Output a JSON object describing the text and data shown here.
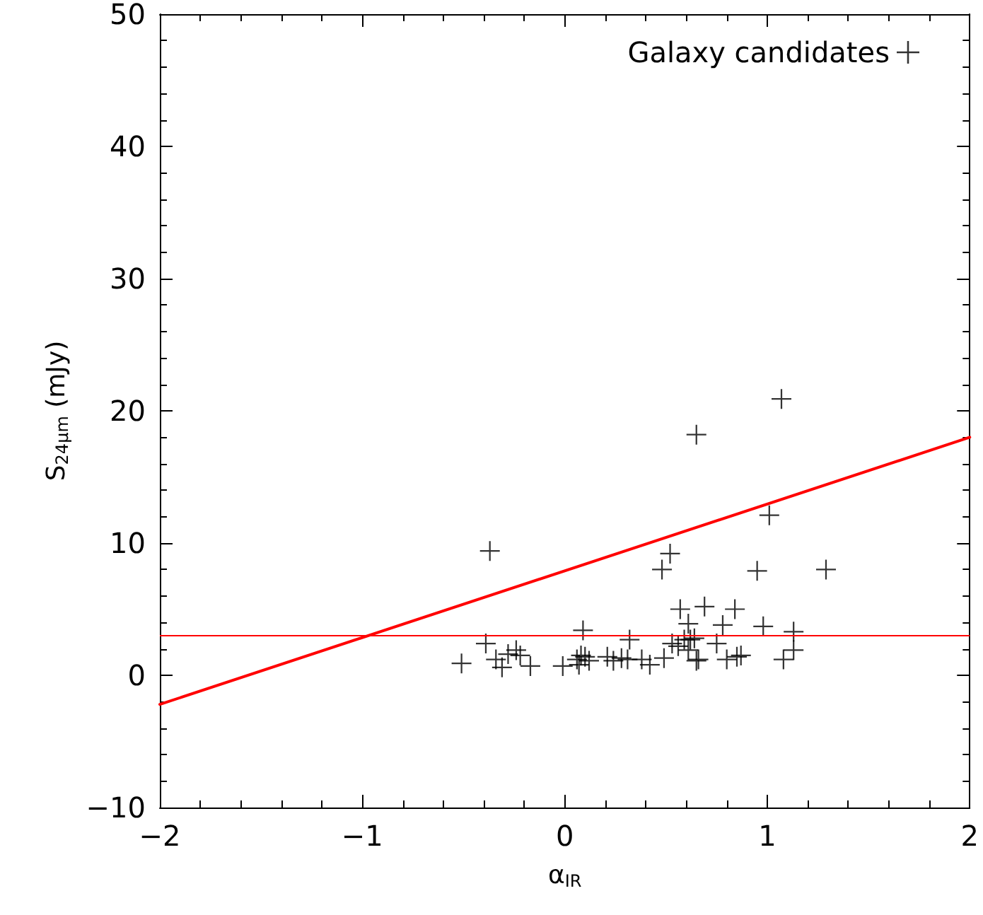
{
  "chart_data": {
    "type": "scatter",
    "xlabel": "α$_{IR}$",
    "ylabel": "S$_{24μm}$ (mJy)",
    "xlim": [
      -2,
      2
    ],
    "xticks": [
      -2,
      -1,
      0,
      1,
      2
    ],
    "ylim": [
      -10,
      50
    ],
    "yticks": [
      -10,
      0,
      10,
      20,
      30,
      40,
      50
    ],
    "grid": false,
    "legend": "top right",
    "marker": "cross",
    "series": [
      {
        "name": "Galaxy candidates",
        "color": "#000000",
        "x": [
          -0.37,
          0.52,
          0.48,
          0.57,
          0.69,
          0.61,
          0.09,
          0.32,
          -0.39,
          -0.51,
          -0.34,
          -0.31,
          -0.28,
          -0.24,
          -0.22,
          -0.17,
          -0.01,
          0.06,
          0.08,
          0.1,
          0.07,
          0.12,
          0.21,
          0.24,
          0.28,
          0.31,
          0.38,
          0.42,
          0.49,
          0.53,
          0.56,
          0.59,
          0.62,
          0.64,
          0.61,
          0.66,
          1.07,
          0.65,
          1.01,
          0.95,
          1.29,
          0.84,
          0.78,
          0.98,
          1.13,
          0.75,
          1.13,
          1.08,
          0.8,
          0.85,
          0.87,
          0.65
        ],
        "values": [
          9.4,
          9.2,
          8.0,
          5.0,
          5.2,
          3.9,
          3.4,
          2.7,
          2.4,
          0.9,
          1.2,
          0.6,
          1.6,
          1.9,
          1.5,
          0.7,
          0.7,
          1.2,
          1.5,
          1.4,
          0.8,
          1.1,
          1.4,
          1.1,
          1.3,
          1.2,
          1.2,
          0.8,
          1.3,
          2.4,
          2.2,
          2.7,
          2.7,
          2.8,
          1.9,
          1.2,
          20.9,
          18.2,
          12.1,
          7.9,
          8.0,
          5.0,
          3.8,
          3.7,
          3.3,
          2.4,
          1.9,
          1.2,
          1.2,
          1.4,
          1.5,
          1.1
        ]
      },
      {
        "type": "line",
        "color": "#ff0000",
        "x": [
          -2,
          2
        ],
        "values": [
          -2.2,
          18
        ],
        "marker": "none",
        "line_style": "solid"
      }
    ],
    "ref_lines": [
      {
        "axis": "y",
        "value": 3,
        "color": "#ff0000",
        "line_style": "solid"
      }
    ]
  }
}
